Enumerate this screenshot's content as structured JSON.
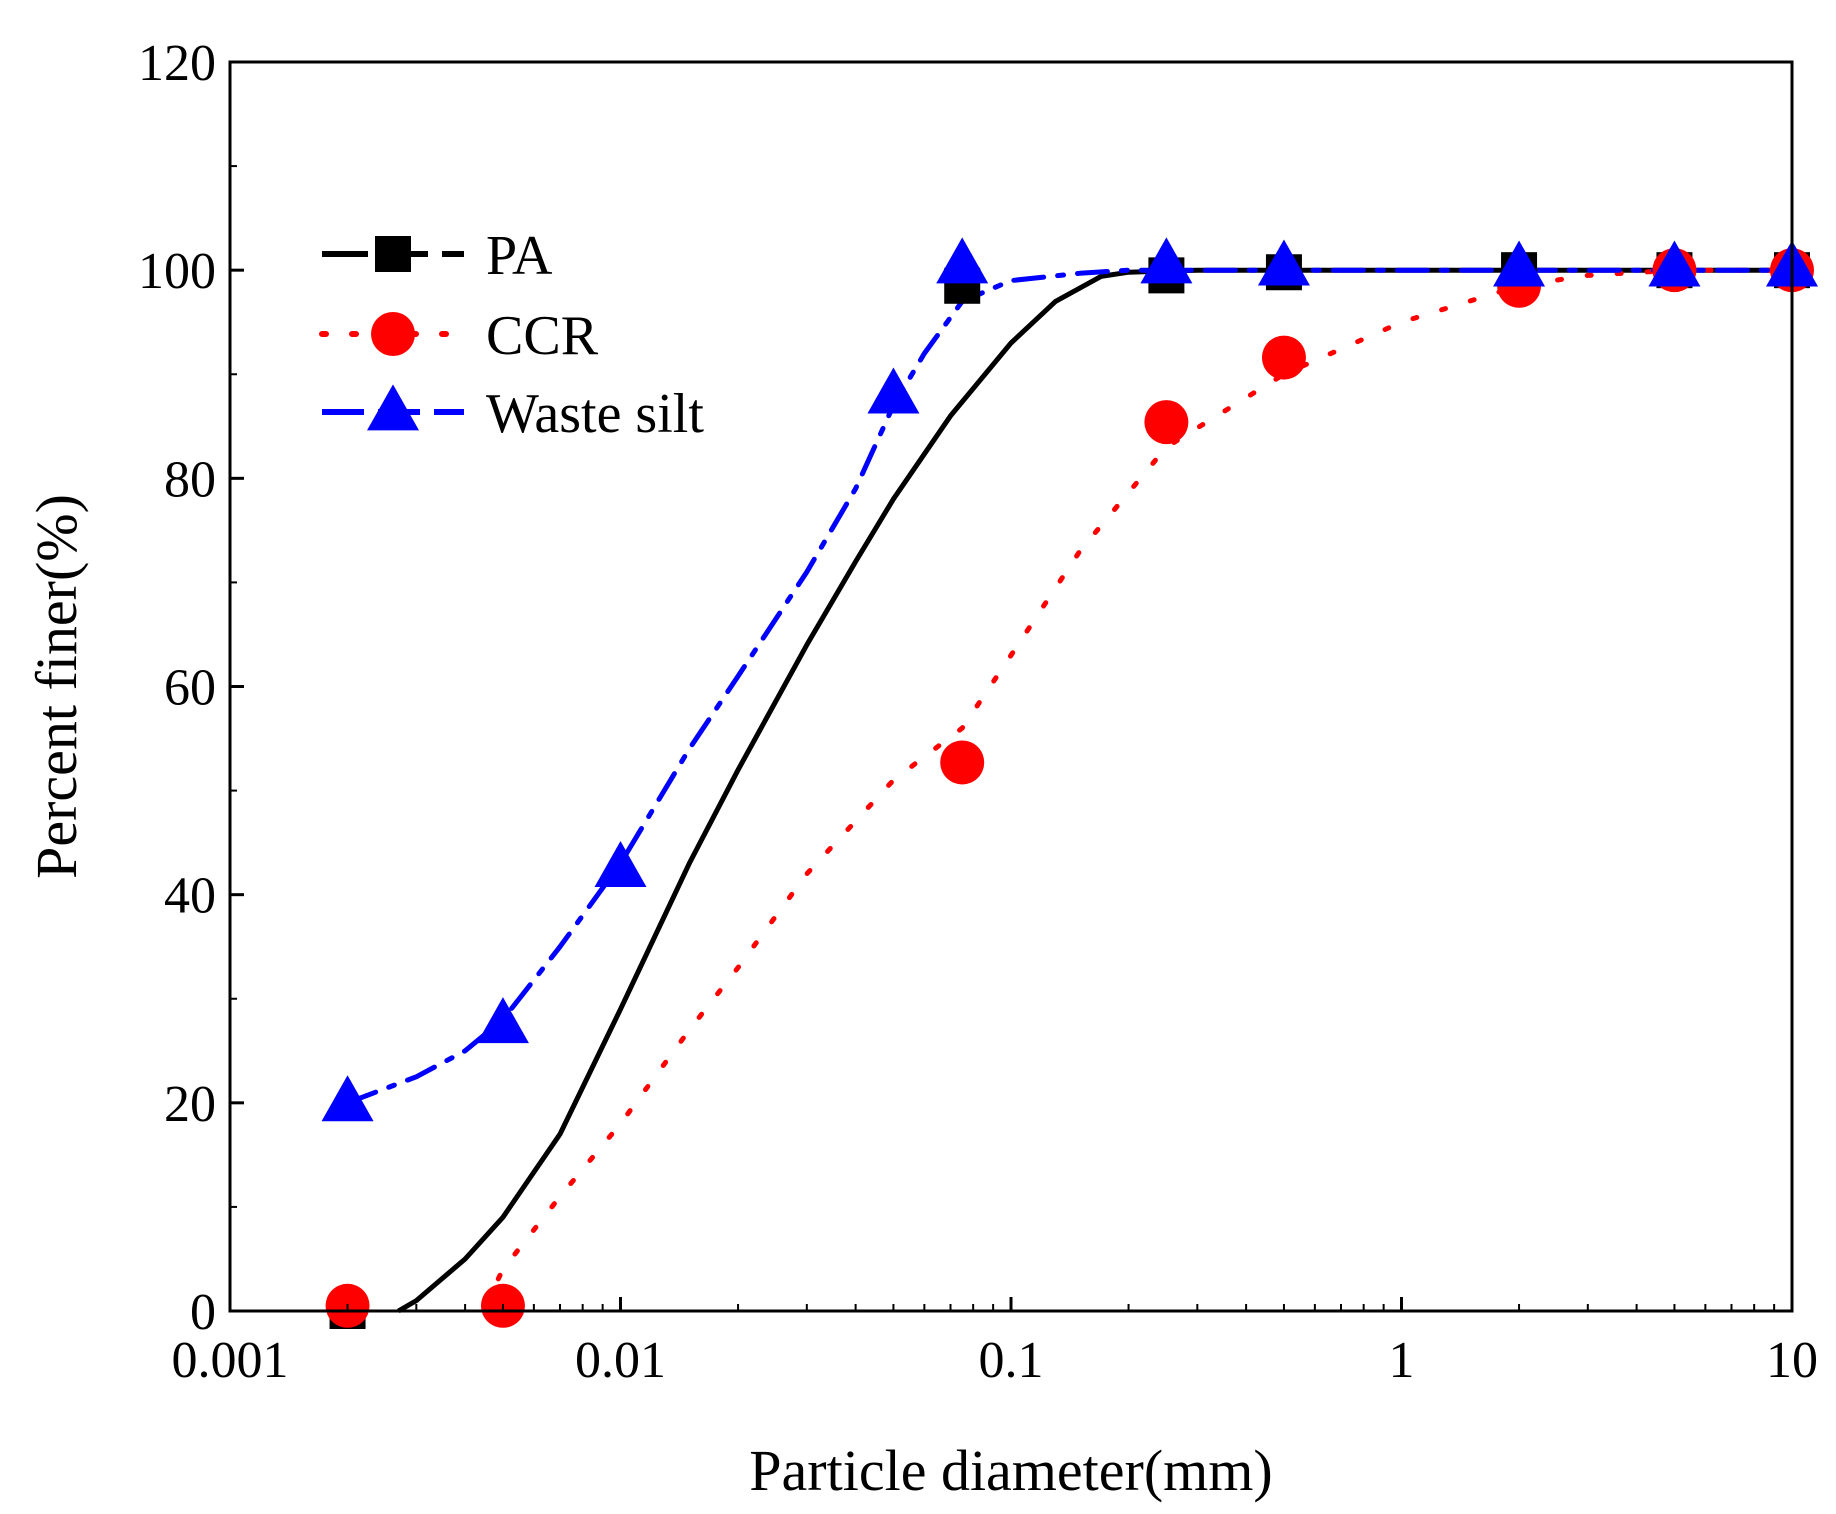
{
  "chart_data": {
    "type": "line",
    "title": "",
    "xlabel": "Particle diameter(mm)",
    "ylabel": "Percent finer(%)",
    "xscale": "log",
    "xlim": [
      0.001,
      10
    ],
    "ylim": [
      0,
      120
    ],
    "xticks": [
      {
        "value": 0.001,
        "label": "0.001"
      },
      {
        "value": 0.01,
        "label": "0.01"
      },
      {
        "value": 0.1,
        "label": "0.1"
      },
      {
        "value": 1,
        "label": "1"
      },
      {
        "value": 10,
        "label": "10"
      }
    ],
    "yticks": [
      {
        "value": 0,
        "label": "0"
      },
      {
        "value": 20,
        "label": "20"
      },
      {
        "value": 40,
        "label": "40"
      },
      {
        "value": 60,
        "label": "60"
      },
      {
        "value": 80,
        "label": "80"
      },
      {
        "value": 100,
        "label": "100"
      },
      {
        "value": 120,
        "label": "120"
      }
    ],
    "legend_position": "upper-left",
    "series": [
      {
        "name": "PA",
        "color": "#000000",
        "marker": "square",
        "line_style": "solid",
        "x": [
          0.002,
          0.075,
          0.25,
          0.5,
          2,
          5,
          10
        ],
        "y": [
          0,
          98.5,
          99.5,
          99.8,
          100,
          100,
          100
        ],
        "fit_x": [
          0.0027,
          0.003,
          0.004,
          0.005,
          0.007,
          0.01,
          0.015,
          0.02,
          0.03,
          0.04,
          0.05,
          0.07,
          0.1,
          0.13,
          0.17,
          0.2,
          0.3,
          0.5,
          1,
          10
        ],
        "fit_y": [
          0,
          1,
          5,
          9,
          17,
          29,
          43,
          52,
          64,
          72,
          78,
          86,
          93,
          97,
          99.4,
          99.8,
          100,
          100,
          100,
          100
        ]
      },
      {
        "name": "CCR",
        "color": "#ff0000",
        "marker": "circle",
        "line_style": "dotted",
        "x": [
          0.002,
          0.005,
          0.075,
          0.25,
          0.5,
          2,
          5,
          10
        ],
        "y": [
          0.5,
          0.5,
          52.7,
          85.4,
          91.6,
          98.5,
          100,
          100
        ],
        "fit_x": [
          0.0045,
          0.005,
          0.007,
          0.01,
          0.015,
          0.02,
          0.03,
          0.05,
          0.075,
          0.1,
          0.15,
          0.25,
          0.5,
          1,
          2,
          3,
          5,
          10
        ],
        "fit_y": [
          0.5,
          4,
          11,
          18,
          27,
          33,
          42,
          51,
          56,
          63,
          73,
          83,
          90,
          95,
          98.5,
          99.5,
          100,
          100
        ]
      },
      {
        "name": "Waste silt",
        "color": "#0000ff",
        "marker": "triangle",
        "line_style": "dash-dot",
        "x": [
          0.002,
          0.005,
          0.01,
          0.05,
          0.075,
          0.25,
          0.5,
          2,
          5,
          10
        ],
        "y": [
          20,
          27.5,
          42.5,
          88,
          100.5,
          100.5,
          100.3,
          100.2,
          100.2,
          100.2
        ],
        "fit_x": [
          0.002,
          0.003,
          0.004,
          0.005,
          0.007,
          0.01,
          0.015,
          0.02,
          0.03,
          0.04,
          0.05,
          0.06,
          0.075,
          0.1,
          0.15,
          0.2,
          0.25,
          0.5,
          2,
          5,
          10
        ],
        "fit_y": [
          20,
          22.5,
          25,
          28,
          35,
          43,
          54,
          61,
          71,
          79,
          87,
          92,
          97,
          99,
          99.7,
          100,
          100,
          100,
          100,
          100,
          100
        ]
      }
    ]
  }
}
